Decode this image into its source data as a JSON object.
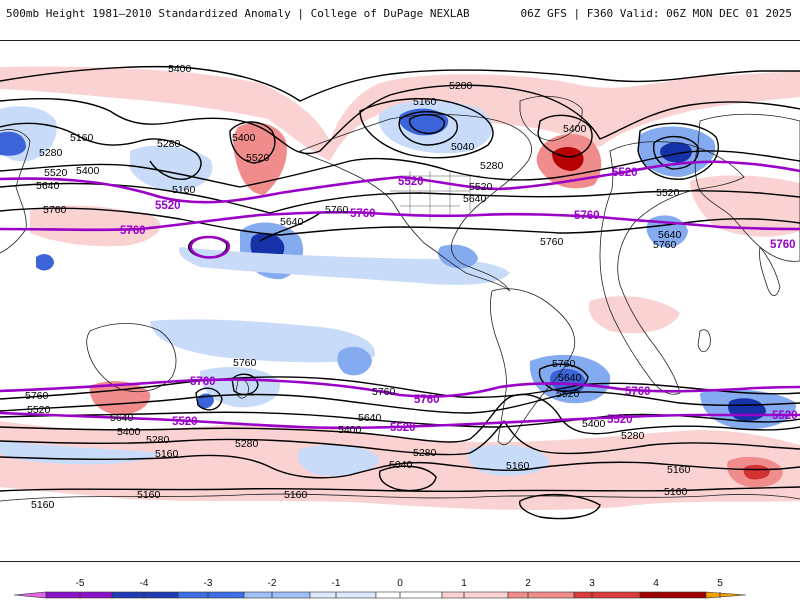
{
  "header": {
    "title_left": "500mb Height 1981–2010 Standardized Anomaly | College of DuPage NEXLAB",
    "title_right": "06Z GFS | F360 Valid: 06Z MON DEC 01 2025"
  },
  "colors": {
    "contour": "#000000",
    "highlight_contour": "#9a00c8",
    "coast": "#222222",
    "neg_light": "#c8dcfa",
    "neg_mid": "#84aaf0",
    "neg_strong": "#3c64d8",
    "neg_deep": "#1632a8",
    "pos_light": "#fad2d2",
    "pos_mid": "#f08c8c",
    "pos_strong": "#d23232",
    "pos_deep": "#a00000"
  },
  "colorbar": {
    "ticks": [
      "-5",
      "-4",
      "-3",
      "-2",
      "-1",
      "0",
      "1",
      "2",
      "3",
      "4",
      "5"
    ],
    "segments": [
      {
        "value": -5,
        "color": "#e066e6"
      },
      {
        "value": -4,
        "color": "#8a14c8"
      },
      {
        "value": -3,
        "color": "#1e3cb4"
      },
      {
        "value": -2,
        "color": "#3c6ee6"
      },
      {
        "value": -1,
        "color": "#a0c0f8"
      },
      {
        "value": 0,
        "color": "#dce8fc"
      },
      {
        "value": 0.5,
        "color": "#ffffff"
      },
      {
        "value": 1,
        "color": "#fad2d2"
      },
      {
        "value": 2,
        "color": "#f08c8c"
      },
      {
        "value": 3,
        "color": "#dc3c3c"
      },
      {
        "value": 4,
        "color": "#a00000"
      },
      {
        "value": 5,
        "color": "#f0a000"
      }
    ]
  },
  "contour_labels": {
    "l5400a": "5400",
    "l5280a": "5280",
    "l5160a": "5160",
    "l5040a": "5040",
    "l5400b": "5400",
    "l5160b": "5160",
    "l5280b": "5280",
    "l5520a": "5520",
    "l5400c": "5400",
    "l5640a": "5640",
    "l5280c": "5280",
    "l5400d": "5400",
    "l5520b": "5520",
    "l5160c": "5160",
    "l5760a": "5760",
    "l5640b": "5640",
    "l5760b": "5760",
    "l5520c": "5520",
    "l5640c": "5640",
    "l5280d": "5280",
    "l5520d": "5520",
    "l5760c": "5760",
    "l5640d": "5640",
    "l5760d": "5760",
    "l5760e": "5760",
    "l5760f": "5760",
    "l5760g": "5760",
    "l5640e": "5640",
    "l5520e": "5520",
    "l5760h": "5760",
    "l5520f": "5520",
    "l5640f": "5640",
    "l5400e": "5400",
    "l5280e": "5280",
    "l5160d": "5160",
    "l5280f": "5280",
    "l5640g": "5640",
    "l5400f": "5400",
    "l5280g": "5280",
    "l5040b": "5040",
    "l5160e": "5160",
    "l5400g": "5400",
    "l5280h": "5280",
    "l5160f": "5160",
    "l5160g": "5160",
    "l5160h": "5160",
    "l5160i": "5160",
    "l5160j": "5160"
  },
  "highlight_labels": {
    "h5520a": "5520",
    "h5760a": "5760",
    "h5520b": "5520",
    "h5760b": "5760",
    "h5760c": "5760",
    "h5520c": "5520",
    "h5760d": "5760",
    "h5520d": "5520",
    "h5760e": "5760",
    "h5520e": "5520",
    "h5760f": "5760",
    "h5760g": "5760",
    "h5520f": "5520",
    "h5520g": "5520"
  }
}
